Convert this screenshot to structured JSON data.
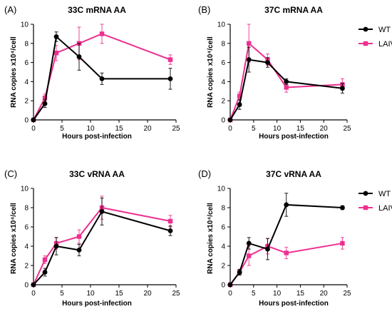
{
  "series_colors": {
    "WT": "#000000",
    "LAIV": "#ee2f8f"
  },
  "chart_data": [
    {
      "type": "line",
      "panel_label": "(A)",
      "title": "33C mRNA AA",
      "xlabel": "Hours post-infection",
      "ylabel": "RNA copies x10⁴/cell",
      "xlim": [
        0,
        25
      ],
      "ylim": [
        0,
        10
      ],
      "xticks": [
        0,
        5,
        10,
        15,
        20,
        25
      ],
      "yticks": [
        0,
        2,
        4,
        6,
        8,
        10
      ],
      "x": [
        0,
        2,
        4,
        8,
        12,
        24
      ],
      "series": [
        {
          "name": "WT",
          "values": [
            0,
            1.7,
            8.7,
            6.6,
            4.3,
            4.3
          ],
          "errors": [
            0,
            0.4,
            0.5,
            1.4,
            0.6,
            1.1
          ]
        },
        {
          "name": "LAIV",
          "values": [
            0,
            2.3,
            7.0,
            8.0,
            9.0,
            6.3
          ],
          "errors": [
            0,
            0.4,
            0.8,
            1.7,
            1.0,
            0.5
          ]
        }
      ],
      "legend": null
    },
    {
      "type": "line",
      "panel_label": "(B)",
      "title": "37C mRNA AA",
      "xlabel": "Hours post-infection",
      "ylabel": "RNA copies x10⁴/cell",
      "xlim": [
        0,
        25
      ],
      "ylim": [
        0,
        10
      ],
      "xticks": [
        0,
        5,
        10,
        15,
        20,
        25
      ],
      "yticks": [
        0,
        2,
        4,
        6,
        8,
        10
      ],
      "x": [
        0,
        2,
        4,
        8,
        12,
        24
      ],
      "series": [
        {
          "name": "WT",
          "values": [
            0,
            1.6,
            6.3,
            6.0,
            4.0,
            3.3
          ],
          "errors": [
            0,
            0.5,
            1.3,
            0.5,
            0.3,
            0.5
          ]
        },
        {
          "name": "LAIV",
          "values": [
            0,
            2.5,
            8.0,
            6.3,
            3.4,
            3.7
          ],
          "errors": [
            0,
            0.4,
            2.0,
            0.6,
            0.5,
            0.6
          ]
        }
      ],
      "legend": {
        "position": "right",
        "items": [
          "WT",
          "LAIV"
        ]
      }
    },
    {
      "type": "line",
      "panel_label": "(C)",
      "title": "33C vRNA AA",
      "xlabel": "Hours post-infection",
      "ylabel": "RNA copies x10⁴/cell",
      "xlim": [
        0,
        25
      ],
      "ylim": [
        0,
        10
      ],
      "xticks": [
        0,
        5,
        10,
        15,
        20,
        25
      ],
      "yticks": [
        0,
        2,
        4,
        6,
        8,
        10
      ],
      "x": [
        0,
        2,
        4,
        8,
        12,
        24
      ],
      "series": [
        {
          "name": "WT",
          "values": [
            0,
            1.3,
            4.0,
            3.6,
            7.6,
            5.6
          ],
          "errors": [
            0,
            0.4,
            0.9,
            0.6,
            1.4,
            0.5
          ]
        },
        {
          "name": "LAIV",
          "values": [
            0,
            2.6,
            4.3,
            5.0,
            8.0,
            6.6
          ],
          "errors": [
            0,
            0.4,
            0.6,
            0.7,
            1.2,
            0.6
          ]
        }
      ],
      "legend": null
    },
    {
      "type": "line",
      "panel_label": "(D)",
      "title": "37C vRNA AA",
      "xlabel": "Hours post-infection",
      "ylabel": "RNA copies x10⁴/cell",
      "xlim": [
        0,
        25
      ],
      "ylim": [
        0,
        10
      ],
      "xticks": [
        0,
        5,
        10,
        15,
        20,
        25
      ],
      "yticks": [
        0,
        2,
        4,
        6,
        8,
        10
      ],
      "x": [
        0,
        2,
        4,
        8,
        12,
        24
      ],
      "series": [
        {
          "name": "WT",
          "values": [
            0,
            1.3,
            4.3,
            3.7,
            8.3,
            8.0
          ],
          "errors": [
            0,
            0.3,
            0.6,
            1.1,
            1.2,
            0.2
          ]
        },
        {
          "name": "LAIV",
          "values": [
            0,
            1.3,
            3.0,
            4.0,
            3.3,
            4.3
          ],
          "errors": [
            0,
            0.3,
            1.0,
            0.8,
            0.6,
            0.6
          ]
        }
      ],
      "legend": {
        "position": "right",
        "items": [
          "WT",
          "LAIV"
        ]
      }
    }
  ]
}
